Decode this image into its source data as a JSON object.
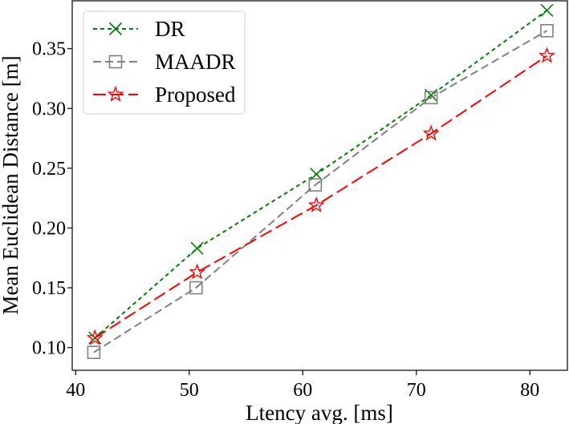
{
  "chart_data": {
    "type": "line",
    "title": "",
    "xlabel": "Ltency avg. [ms]",
    "ylabel": "Mean Euclidean Distance [m]",
    "xlim": [
      39.7,
      83.3
    ],
    "ylim": [
      0.081,
      0.39
    ],
    "xticks": [
      40,
      50,
      60,
      70,
      80
    ],
    "xtick_labels": [
      "40",
      "50",
      "60",
      "70",
      "80"
    ],
    "yticks": [
      0.1,
      0.15,
      0.2,
      0.25,
      0.3,
      0.35
    ],
    "ytick_labels": [
      "0.10",
      "0.15",
      "0.20",
      "0.25",
      "0.30",
      "0.35"
    ],
    "grid": false,
    "legend_position": "upper-left",
    "series": [
      {
        "name": "DR",
        "color": "#008000",
        "marker": "x",
        "line_style": "dashed-short",
        "x": [
          41.7,
          50.7,
          61.2,
          71.3,
          81.5
        ],
        "y": [
          0.108,
          0.183,
          0.245,
          0.311,
          0.382
        ]
      },
      {
        "name": "MAADR",
        "color": "#808080",
        "marker": "square",
        "line_style": "dashed-medium",
        "x": [
          41.6,
          50.6,
          61.1,
          71.3,
          81.5
        ],
        "y": [
          0.096,
          0.15,
          0.236,
          0.309,
          0.365
        ]
      },
      {
        "name": "Proposed",
        "color": "#ff0000",
        "marker": "star",
        "line_style": "dashed-long",
        "x": [
          41.7,
          50.7,
          61.2,
          71.3,
          81.5
        ],
        "y": [
          0.108,
          0.163,
          0.219,
          0.279,
          0.344
        ]
      }
    ]
  }
}
